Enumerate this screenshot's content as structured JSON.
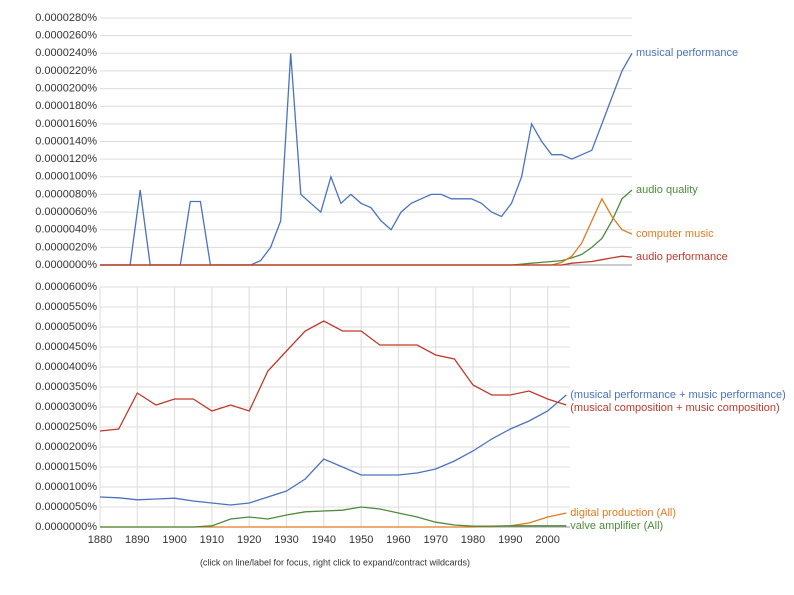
{
  "chart_data": [
    {
      "type": "line",
      "ylim": [
        0,
        2.8e-05
      ],
      "yticks": [
        {
          "value": 0,
          "label": "0.0000000%"
        },
        {
          "value": 2e-06,
          "label": "0.0000020%"
        },
        {
          "value": 4e-06,
          "label": "0.0000040%"
        },
        {
          "value": 6e-06,
          "label": "0.0000060%"
        },
        {
          "value": 8e-06,
          "label": "0.0000080%"
        },
        {
          "value": 1e-05,
          "label": "0.0000100%"
        },
        {
          "value": 1.2e-05,
          "label": "0.0000120%"
        },
        {
          "value": 1.4e-05,
          "label": "0.0000140%"
        },
        {
          "value": 1.6e-05,
          "label": "0.0000160%"
        },
        {
          "value": 1.8e-05,
          "label": "0.0000180%"
        },
        {
          "value": 2e-05,
          "label": "0.0000200%"
        },
        {
          "value": 2.2e-05,
          "label": "0.0000220%"
        },
        {
          "value": 2.4e-05,
          "label": "0.0000240%"
        },
        {
          "value": 2.6e-05,
          "label": "0.0000260%"
        },
        {
          "value": 2.8e-05,
          "label": "0.0000280%"
        }
      ],
      "grid": true,
      "series": [
        {
          "name": "musical performance",
          "color": "#4a72c0",
          "values": [
            0,
            0,
            0,
            0,
            8.5e-06,
            0,
            0,
            0,
            0,
            7.2e-06,
            7.2e-06,
            0,
            0,
            0,
            0,
            0,
            5e-07,
            2e-06,
            5e-06,
            2.4e-05,
            8e-06,
            7e-06,
            6e-06,
            1e-05,
            7e-06,
            8e-06,
            7e-06,
            6.5e-06,
            5e-06,
            4e-06,
            6e-06,
            7e-06,
            7.5e-06,
            8e-06,
            8e-06,
            7.5e-06,
            7.5e-06,
            7.5e-06,
            7e-06,
            6e-06,
            5.5e-06,
            7e-06,
            1e-05,
            1.6e-05,
            1.4e-05,
            1.25e-05,
            1.25e-05,
            1.2e-05,
            1.25e-05,
            1.3e-05,
            1.6e-05,
            1.9e-05,
            2.2e-05,
            2.4e-05
          ]
        },
        {
          "name": "audio quality",
          "color": "#4e8a3c",
          "values": [
            0,
            0,
            0,
            0,
            0,
            0,
            0,
            0,
            0,
            0,
            0,
            0,
            0,
            0,
            0,
            0,
            0,
            0,
            0,
            0,
            0,
            0,
            0,
            0,
            0,
            0,
            0,
            0,
            0,
            0,
            0,
            0,
            0,
            0,
            0,
            0,
            0,
            0,
            0,
            0,
            0,
            0,
            1e-07,
            2e-07,
            3e-07,
            4e-07,
            5e-07,
            8e-07,
            1.2e-06,
            2e-06,
            3e-06,
            5e-06,
            7.5e-06,
            8.5e-06
          ]
        },
        {
          "name": "computer music",
          "color": "#e07b22",
          "values": [
            0,
            0,
            0,
            0,
            0,
            0,
            0,
            0,
            0,
            0,
            0,
            0,
            0,
            0,
            0,
            0,
            0,
            0,
            0,
            0,
            0,
            0,
            0,
            0,
            0,
            0,
            0,
            0,
            0,
            0,
            0,
            0,
            0,
            0,
            0,
            0,
            0,
            0,
            0,
            0,
            0,
            0,
            0,
            0,
            0,
            0,
            3e-07,
            1e-06,
            2.5e-06,
            5e-06,
            7.5e-06,
            5.5e-06,
            4e-06,
            3.5e-06
          ]
        },
        {
          "name": "audio performance",
          "color": "#c0392b",
          "values": [
            0,
            0,
            0,
            0,
            0,
            0,
            0,
            0,
            0,
            0,
            0,
            0,
            0,
            0,
            0,
            0,
            0,
            0,
            0,
            0,
            0,
            0,
            0,
            0,
            0,
            0,
            0,
            0,
            0,
            0,
            0,
            0,
            0,
            0,
            0,
            0,
            0,
            0,
            0,
            0,
            0,
            0,
            0,
            0,
            0,
            0,
            0,
            2e-07,
            3e-07,
            4e-07,
            6e-07,
            8e-07,
            1e-06,
            9e-07
          ]
        }
      ]
    },
    {
      "type": "line",
      "xlim": [
        1880,
        2006
      ],
      "xticks": [
        1880,
        1890,
        1900,
        1910,
        1920,
        1930,
        1940,
        1950,
        1960,
        1970,
        1980,
        1990,
        2000
      ],
      "ylim": [
        0,
        6e-05
      ],
      "yticks": [
        {
          "value": 0,
          "label": "0.0000000%"
        },
        {
          "value": 5e-06,
          "label": "0.0000050%"
        },
        {
          "value": 1e-05,
          "label": "0.0000100%"
        },
        {
          "value": 1.5e-05,
          "label": "0.0000150%"
        },
        {
          "value": 2e-05,
          "label": "0.0000200%"
        },
        {
          "value": 2.5e-05,
          "label": "0.0000250%"
        },
        {
          "value": 3e-05,
          "label": "0.0000300%"
        },
        {
          "value": 3.5e-05,
          "label": "0.0000350%"
        },
        {
          "value": 4e-05,
          "label": "0.0000400%"
        },
        {
          "value": 4.5e-05,
          "label": "0.0000450%"
        },
        {
          "value": 5e-05,
          "label": "0.0000500%"
        },
        {
          "value": 5.5e-05,
          "label": "0.0000550%"
        },
        {
          "value": 6e-05,
          "label": "0.0000600%"
        }
      ],
      "grid": true,
      "x": [
        1880,
        1885,
        1890,
        1895,
        1900,
        1905,
        1910,
        1915,
        1920,
        1925,
        1930,
        1935,
        1940,
        1945,
        1950,
        1955,
        1960,
        1965,
        1970,
        1975,
        1980,
        1985,
        1990,
        1995,
        2000,
        2005
      ],
      "series": [
        {
          "name": "(musical performance + music performance)",
          "color": "#4a72c0",
          "values": [
            7.5e-06,
            7.3e-06,
            6.8e-06,
            7e-06,
            7.2e-06,
            6.5e-06,
            6e-06,
            5.5e-06,
            6e-06,
            7.5e-06,
            9e-06,
            1.2e-05,
            1.7e-05,
            1.5e-05,
            1.3e-05,
            1.3e-05,
            1.3e-05,
            1.35e-05,
            1.45e-05,
            1.65e-05,
            1.9e-05,
            2.2e-05,
            2.45e-05,
            2.65e-05,
            2.9e-05,
            3.3e-05
          ]
        },
        {
          "name": "(musical composition + music composition)",
          "color": "#c0392b",
          "values": [
            2.4e-05,
            2.45e-05,
            3.35e-05,
            3.05e-05,
            3.2e-05,
            3.2e-05,
            2.9e-05,
            3.05e-05,
            2.9e-05,
            3.9e-05,
            4.4e-05,
            4.9e-05,
            5.15e-05,
            4.9e-05,
            4.9e-05,
            4.55e-05,
            4.55e-05,
            4.55e-05,
            4.3e-05,
            4.2e-05,
            3.55e-05,
            3.3e-05,
            3.3e-05,
            3.4e-05,
            3.2e-05,
            3.05e-05
          ]
        },
        {
          "name": "digital production (All)",
          "color": "#e07b22",
          "values": [
            0,
            0,
            0,
            0,
            0,
            0,
            0,
            0,
            0,
            0,
            0,
            0,
            0,
            0,
            0,
            0,
            0,
            0,
            0,
            0,
            0,
            1e-07,
            3e-07,
            1e-06,
            2.5e-06,
            3.5e-06
          ]
        },
        {
          "name": "valve amplifier (All)",
          "color": "#4e8a3c",
          "values": [
            0,
            0,
            0,
            0,
            0,
            0,
            3e-07,
            2e-06,
            2.5e-06,
            2e-06,
            3e-06,
            3.8e-06,
            4e-06,
            4.2e-06,
            5e-06,
            4.5e-06,
            3.5e-06,
            2.5e-06,
            1.2e-06,
            5e-07,
            2e-07,
            2e-07,
            3e-07,
            3e-07,
            3e-07,
            3e-07
          ]
        }
      ]
    }
  ],
  "note": "(click on line/label for focus, right click to expand/contract wildcards)"
}
